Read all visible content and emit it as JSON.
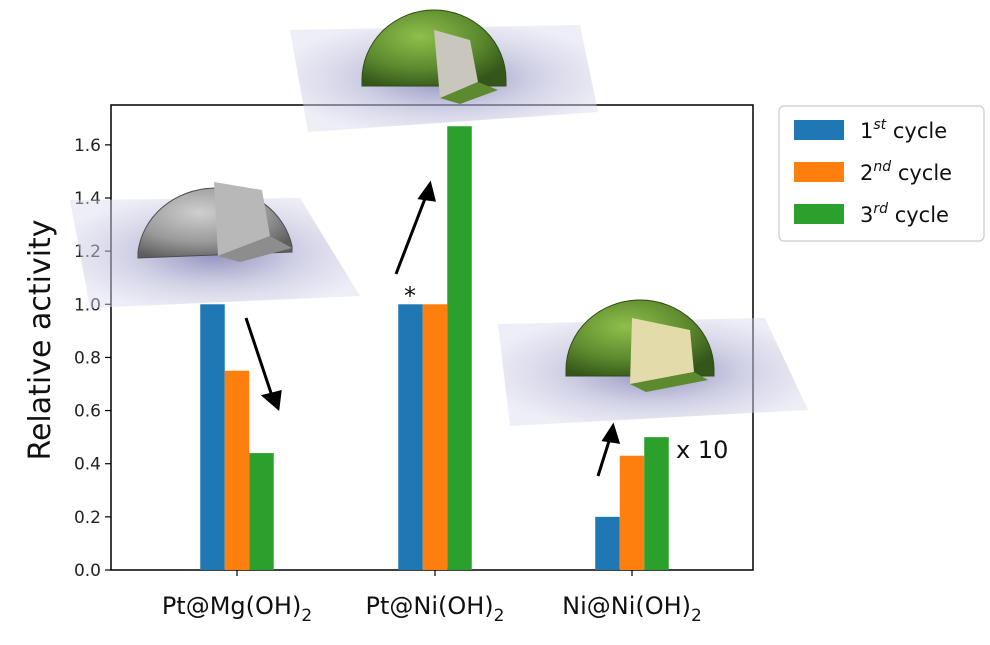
{
  "chart_data": {
    "type": "bar",
    "categories": [
      "Pt@Mg(OH)",
      "Pt@Ni(OH)",
      "Ni@Ni(OH)"
    ],
    "category_subscript": "2",
    "series": [
      {
        "name": "cycle",
        "superscript": "st",
        "prefix": "1",
        "color": "#1f77b4",
        "values": [
          1.0,
          1.0,
          0.2
        ]
      },
      {
        "name": "cycle",
        "superscript": "nd",
        "prefix": "2",
        "color": "#ff7f0e",
        "values": [
          0.75,
          1.0,
          0.43
        ]
      },
      {
        "name": "cycle",
        "superscript": "rd",
        "prefix": "3",
        "color": "#2ca02c",
        "values": [
          0.44,
          1.67,
          0.5
        ]
      }
    ],
    "ylabel": "Relative activity",
    "ylim": [
      0.0,
      1.75
    ],
    "yticks": [
      "0.0",
      "0.2",
      "0.4",
      "0.6",
      "0.8",
      "1.0",
      "1.2",
      "1.4",
      "1.6"
    ],
    "grid": false,
    "legend_position": "outside-right",
    "annotations": {
      "asterisk": "*",
      "scale_note": "x 10"
    }
  },
  "icons": [
    "grey-hemisphere-particle-icon",
    "green-hemisphere-particle-icon",
    "green-core-shell-particle-icon"
  ]
}
